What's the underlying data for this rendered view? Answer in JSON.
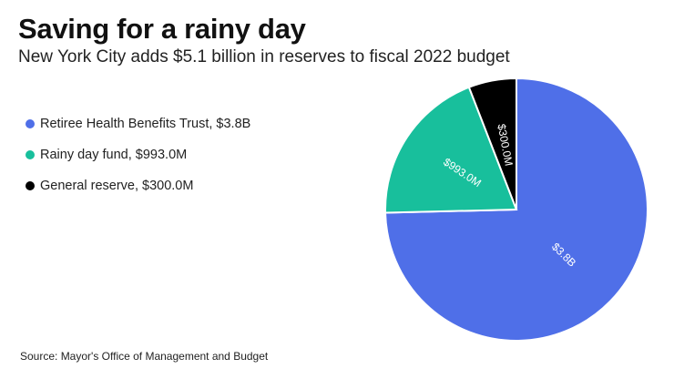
{
  "title": "Saving for a rainy day",
  "subtitle": "New York City adds $5.1 billion in reserves to fiscal 2022 budget",
  "source": "Source: Mayor's Office of Management and Budget",
  "chart_data": {
    "type": "pie",
    "title": "Saving for a rainy day",
    "legend_position": "left",
    "slices": [
      {
        "name": "Retiree Health Benefits Trust",
        "legend": "Retiree Health Benefits Trust, $3.8B",
        "label": "$3.8B",
        "value": 3800,
        "color": "#4f6fe8"
      },
      {
        "name": "Rainy day fund",
        "legend": "Rainy day fund, $993.0M",
        "label": "$993.0M",
        "value": 993,
        "color": "#18bf9c"
      },
      {
        "name": "General reserve",
        "legend": "General reserve, $300.0M",
        "label": "$300.0M",
        "value": 300,
        "color": "#000000"
      }
    ],
    "units": "millions USD"
  }
}
